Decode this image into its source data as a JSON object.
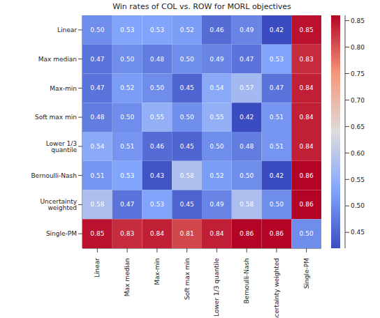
{
  "chart_data": {
    "type": "heatmap",
    "title": "Win rates of COL vs. ROW for MORL objectives",
    "x_categories": [
      "Linear",
      "Max median",
      "Max-min",
      "Soft max min",
      "Lower 1/3 quantile",
      "Bernoulli-Nash",
      "Uncertainty weighted",
      "Single-PM"
    ],
    "y_categories": [
      "Linear",
      "Max median",
      "Max-min",
      "Soft max min",
      "Lower 1/3 quantile",
      "Bernoulli-Nash",
      "Uncertainty weighted",
      "Single-PM"
    ],
    "cells": [
      [
        0.5,
        0.53,
        0.53,
        0.52,
        0.46,
        0.49,
        0.42,
        0.85
      ],
      [
        0.47,
        0.5,
        0.48,
        0.5,
        0.49,
        0.47,
        0.53,
        0.83
      ],
      [
        0.47,
        0.52,
        0.5,
        0.45,
        0.54,
        0.57,
        0.47,
        0.84
      ],
      [
        0.48,
        0.5,
        0.55,
        0.5,
        0.55,
        0.42,
        0.51,
        0.84
      ],
      [
        0.54,
        0.51,
        0.46,
        0.45,
        0.5,
        0.48,
        0.51,
        0.84
      ],
      [
        0.51,
        0.53,
        0.43,
        0.58,
        0.52,
        0.5,
        0.42,
        0.86
      ],
      [
        0.58,
        0.47,
        0.53,
        0.45,
        0.49,
        0.58,
        0.5,
        0.86
      ],
      [
        0.85,
        0.83,
        0.84,
        0.81,
        0.84,
        0.86,
        0.86,
        0.5
      ]
    ],
    "value_labels": [
      [
        "0.50",
        "0.53",
        "0.53",
        "0.52",
        "0.46",
        "0.49",
        "0.42",
        "0.85"
      ],
      [
        "0.47",
        "0.50",
        "0.48",
        "0.50",
        "0.49",
        "0.47",
        "0.53",
        "0.83"
      ],
      [
        "0.47",
        "0.52",
        "0.50",
        "0.45",
        "0.54",
        "0.57",
        "0.47",
        "0.84"
      ],
      [
        "0.48",
        "0.50",
        "0.55",
        "0.50",
        "0.55",
        "0.42",
        "0.51",
        "0.84"
      ],
      [
        "0.54",
        "0.51",
        "0.46",
        "0.45",
        "0.50",
        "0.48",
        "0.51",
        "0.84"
      ],
      [
        "0.51",
        "0.53",
        "0.43",
        "0.58",
        "0.52",
        "0.50",
        "0.42",
        "0.86"
      ],
      [
        "0.58",
        "0.47",
        "0.53",
        "0.45",
        "0.49",
        "0.58",
        "0.50",
        "0.86"
      ],
      [
        "0.85",
        "0.83",
        "0.84",
        "0.81",
        "0.84",
        "0.86",
        "0.86",
        "0.50"
      ]
    ],
    "data_labels": true,
    "colorbar": {
      "range": [
        0.42,
        0.86
      ],
      "ticks": [
        0.45,
        {
          "value": 0.5,
          "label": "0.50"
        },
        0.55,
        {
          "value": 0.6,
          "label": "0.60"
        },
        0.65,
        {
          "value": 0.7,
          "label": "0.70"
        },
        0.75,
        {
          "value": 0.8,
          "label": "0.80"
        },
        0.85
      ]
    }
  }
}
